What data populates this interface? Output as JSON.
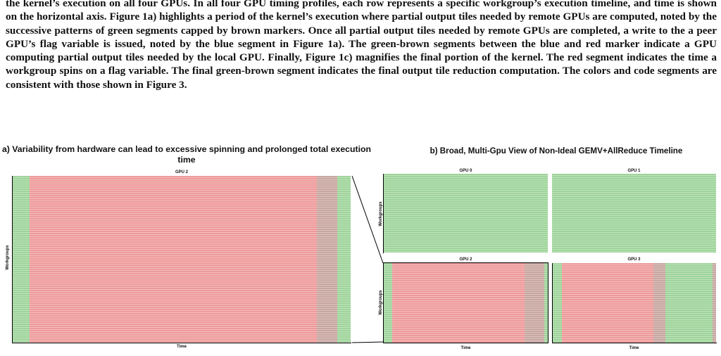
{
  "paragraph": "the kernel’s execution on all four GPUs. In all four GPU timing profiles, each row represents a specific workgroup’s execution timeline, and time is shown on the horizontal axis. Figure 1a) highlights a period of the kernel’s execution where partial output tiles needed by remote GPUs are computed, noted by the successive patterns of green segments capped by brown markers. Once all partial output tiles needed by remote GPUs are completed, a write to the a peer GPU’s flag variable is issued, noted by the blue segment in Figure 1a). The green-brown segments between the blue and red marker indicate a GPU computing partial output tiles needed by the local GPU. Finally, Figure 1c) magnifies the final portion of the kernel. The red segment indicates the time a workgroup spins on a flag variable. The final green-brown segment indicates the final output tile reduction computation. The colors and code segments are consistent with those shown in Figure 3.",
  "figure_a": {
    "title": "a) Variability from hardware can lead to excessive spinning and prolonged total execution time",
    "gpu_label": "GPU 2",
    "ylabel": "Workgroups",
    "xlabel": "Time"
  },
  "figure_b": {
    "title": "b) Broad, Multi-Gpu View of Non-Ideal GEMV+AllReduce Timeline",
    "ylabel": "Workgroups",
    "xlabel": "Time",
    "gpu_labels": [
      "GPU 0",
      "GPU 1",
      "GPU 2",
      "GPU 3"
    ]
  },
  "colors": {
    "green": "#9ed49a",
    "red": "#ee9a9a",
    "brown": "#c8a6a0"
  },
  "timelines": {
    "gpu2_zoom": [
      {
        "kind": "green",
        "start": 0.0,
        "end": 0.05
      },
      {
        "kind": "red",
        "start": 0.05,
        "end": 0.9
      },
      {
        "kind": "brown",
        "start": 0.9,
        "end": 0.96
      },
      {
        "kind": "green",
        "start": 0.96,
        "end": 1.0
      }
    ],
    "gpu0": [
      {
        "kind": "green",
        "start": 0.0,
        "end": 1.0
      }
    ],
    "gpu1": [
      {
        "kind": "green",
        "start": 0.0,
        "end": 1.0
      }
    ],
    "gpu2": [
      {
        "kind": "green",
        "start": 0.0,
        "end": 0.05
      },
      {
        "kind": "red",
        "start": 0.05,
        "end": 0.86
      },
      {
        "kind": "brown",
        "start": 0.86,
        "end": 0.98
      },
      {
        "kind": "green",
        "start": 0.98,
        "end": 1.0
      }
    ],
    "gpu3": [
      {
        "kind": "green",
        "start": 0.0,
        "end": 0.06
      },
      {
        "kind": "red",
        "start": 0.06,
        "end": 0.62
      },
      {
        "kind": "brown",
        "start": 0.62,
        "end": 0.69
      },
      {
        "kind": "green",
        "start": 0.69,
        "end": 0.98
      },
      {
        "kind": "brown",
        "start": 0.98,
        "end": 1.0
      }
    ]
  }
}
